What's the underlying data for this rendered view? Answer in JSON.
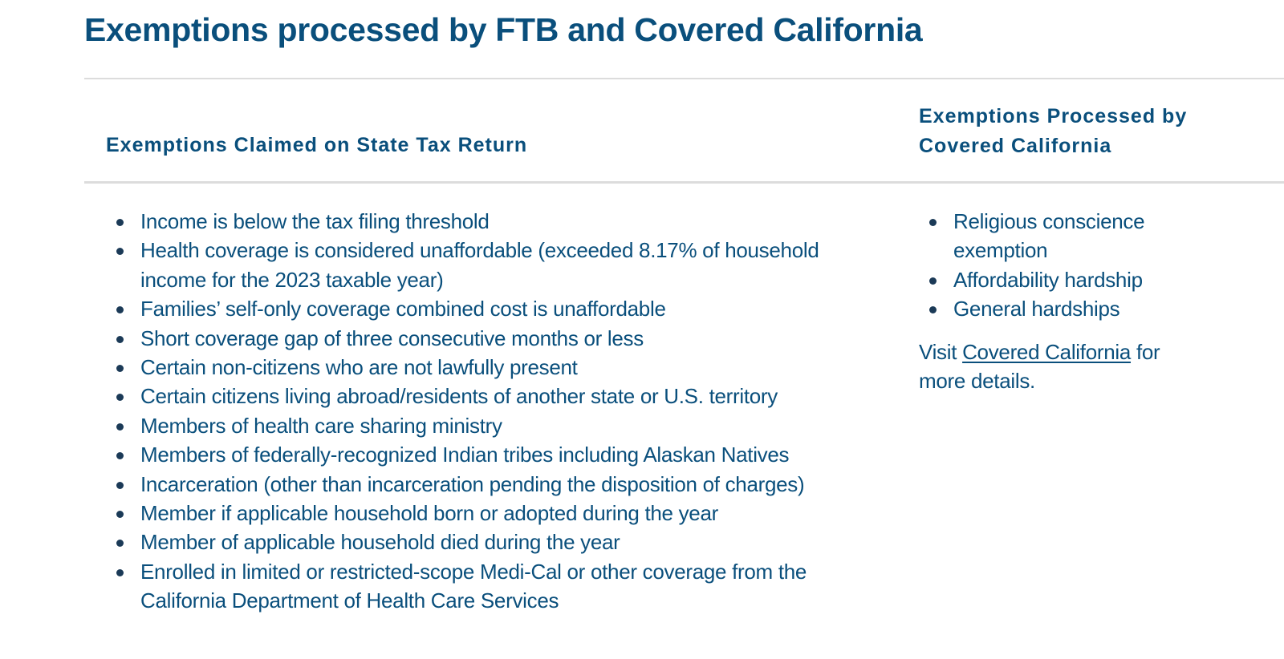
{
  "page": {
    "title": "Exemptions processed by FTB and Covered California"
  },
  "table": {
    "headers": {
      "state_tax_return": "Exemptions Claimed on State Tax Return",
      "covered_california": "Exemptions Processed by Covered California"
    },
    "state_tax_exemptions": [
      "Income is below the tax filing threshold",
      "Health coverage is considered unaffordable (exceeded 8.17% of household income for the 2023 taxable year)",
      "Families’ self-only coverage combined cost is unaffordable",
      "Short coverage gap of three consecutive months or less",
      "Certain non-citizens who are not lawfully present",
      "Certain citizens living abroad/residents of another state or U.S. territory",
      "Members of health care sharing ministry",
      "Members of federally-recognized Indian tribes including Alaskan Natives",
      "Incarceration (other than incarceration pending the disposition of charges)",
      "Member if applicable household born or adopted during the year",
      "Member of applicable household died during the year",
      "Enrolled in limited or restricted-scope Medi-Cal or other coverage from the California Department of Health Care Services"
    ],
    "covered_california_exemptions": [
      "Religious conscience exemption",
      "Affordability hardship",
      "General hardships"
    ],
    "visit": {
      "prefix": "Visit ",
      "link_label": "Covered California",
      "suffix": " for more details."
    }
  },
  "colors": {
    "heading_blue": "#0a4f7c",
    "rule_gray": "#dcdcdc",
    "bullet": "#1b3a57"
  }
}
